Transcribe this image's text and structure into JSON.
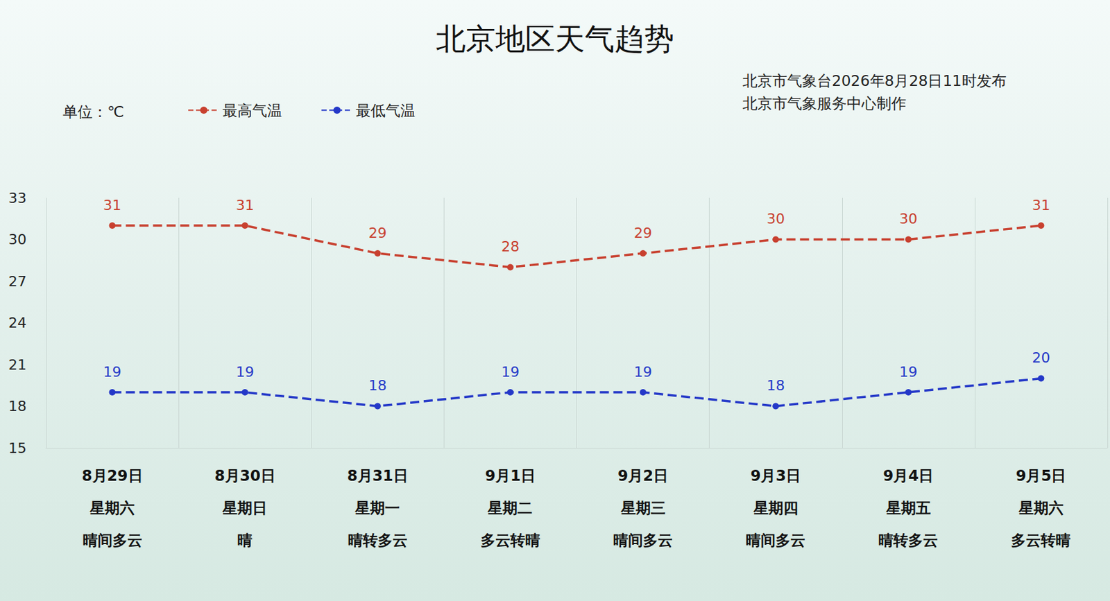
{
  "chart_data": {
    "type": "line",
    "title": "北京地区天气趋势",
    "annotations": [
      "北京市气象台2026年8月28日11时发布",
      "北京市气象服务中心制作"
    ],
    "ylabel": "单位：℃",
    "categories": [
      "8月29日",
      "8月30日",
      "8月31日",
      "9月1日",
      "9月2日",
      "9月3日",
      "9月4日",
      "9月5日"
    ],
    "weekdays": [
      "星期六",
      "星期日",
      "星期一",
      "星期二",
      "星期三",
      "星期四",
      "星期五",
      "星期六"
    ],
    "weather": [
      "晴间多云",
      "晴",
      "晴转多云",
      "多云转晴",
      "晴间多云",
      "晴间多云",
      "晴转多云",
      "多云转晴"
    ],
    "series": [
      {
        "name": "最高气温",
        "color": "#c8402f",
        "values": [
          31,
          31,
          29,
          28,
          29,
          30,
          30,
          31
        ]
      },
      {
        "name": "最低气温",
        "color": "#2438c8",
        "values": [
          19,
          19,
          18,
          19,
          19,
          18,
          19,
          20
        ]
      }
    ],
    "ylim": [
      15,
      33
    ],
    "yticks": [
      15,
      18,
      21,
      24,
      27,
      30,
      33
    ],
    "grid": "x",
    "legend": "top-left",
    "data_labels": true,
    "marker": "circle",
    "line_style": "dashed"
  }
}
